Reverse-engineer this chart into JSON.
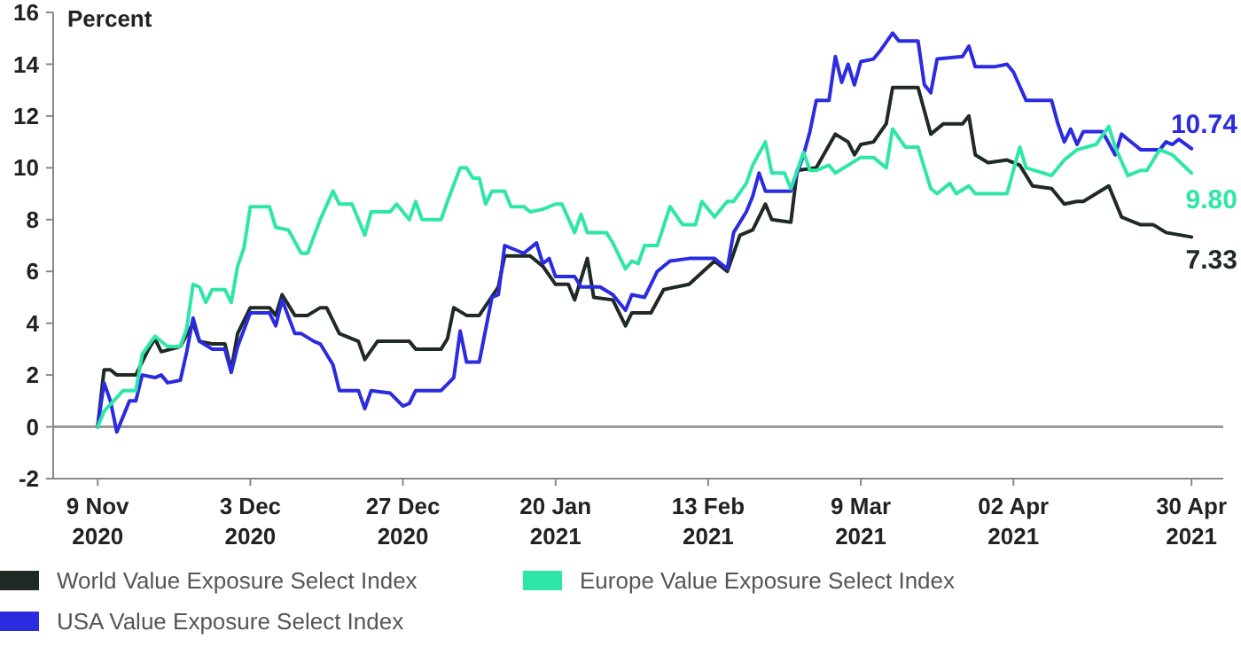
{
  "chart_data": {
    "type": "line",
    "ylabel": "Percent",
    "xlim": [
      "2020-11-02",
      "2021-05-05"
    ],
    "xticks": [
      {
        "value": "2020-11-09",
        "label": "9 Nov 2020"
      },
      {
        "value": "2020-12-03",
        "label": "3 Dec 2020"
      },
      {
        "value": "2020-12-27",
        "label": "27 Dec 2020"
      },
      {
        "value": "2021-01-20",
        "label": "20 Jan 2021"
      },
      {
        "value": "2021-02-13",
        "label": "13 Feb 2021"
      },
      {
        "value": "2021-03-09",
        "label": "9 Mar 2021"
      },
      {
        "value": "2021-04-02",
        "label": "02 Apr 2021"
      },
      {
        "value": "2021-04-30",
        "label": "30 Apr 2021"
      }
    ],
    "ylim": [
      -2,
      16
    ],
    "yticks": [
      -2,
      0,
      2,
      4,
      6,
      8,
      10,
      12,
      14,
      16
    ],
    "grid": false,
    "legend": "bottom",
    "line_style": "solid",
    "marker": "none",
    "ref_lines": [
      {
        "axis": "y",
        "value": 0,
        "color": "#9a9a9a"
      }
    ],
    "series": [
      {
        "name": "World Value Exposure Select Index",
        "color": "#1f2a24",
        "x": [
          "2020-11-09",
          "2020-11-10",
          "2020-11-11",
          "2020-11-12",
          "2020-11-15",
          "2020-11-17",
          "2020-11-18",
          "2020-11-19",
          "2020-11-22",
          "2020-11-24",
          "2020-11-25",
          "2020-11-27",
          "2020-11-29",
          "2020-11-30",
          "2020-12-01",
          "2020-12-03",
          "2020-12-06",
          "2020-12-07",
          "2020-12-08",
          "2020-12-10",
          "2020-12-12",
          "2020-12-14",
          "2020-12-15",
          "2020-12-17",
          "2020-12-20",
          "2020-12-21",
          "2020-12-23",
          "2020-12-26",
          "2020-12-28",
          "2020-12-29",
          "2021-01-02",
          "2021-01-03",
          "2021-01-04",
          "2021-01-06",
          "2021-01-08",
          "2021-01-11",
          "2021-01-12",
          "2021-01-16",
          "2021-01-18",
          "2021-01-20",
          "2021-01-22",
          "2021-01-23",
          "2021-01-25",
          "2021-01-26",
          "2021-01-29",
          "2021-01-31",
          "2021-02-01",
          "2021-02-04",
          "2021-02-06",
          "2021-02-10",
          "2021-02-14",
          "2021-02-16",
          "2021-02-18",
          "2021-02-20",
          "2021-02-22",
          "2021-02-23",
          "2021-02-26",
          "2021-02-27",
          "2021-03-02",
          "2021-03-05",
          "2021-03-07",
          "2021-03-08",
          "2021-03-09",
          "2021-03-11",
          "2021-03-13",
          "2021-03-14",
          "2021-03-18",
          "2021-03-20",
          "2021-03-22",
          "2021-03-25",
          "2021-03-26",
          "2021-03-27",
          "2021-03-29",
          "2021-04-01",
          "2021-04-03",
          "2021-04-05",
          "2021-04-08",
          "2021-04-10",
          "2021-04-12",
          "2021-04-13",
          "2021-04-17",
          "2021-04-19",
          "2021-04-22",
          "2021-04-24",
          "2021-04-26",
          "2021-04-30"
        ],
        "values": [
          0,
          2.2,
          2.2,
          2.0,
          2.0,
          3.0,
          3.4,
          2.9,
          3.1,
          4.0,
          3.3,
          3.2,
          3.2,
          2.2,
          3.6,
          4.6,
          4.6,
          4.3,
          5.1,
          4.3,
          4.3,
          4.6,
          4.6,
          3.6,
          3.3,
          2.6,
          3.3,
          3.3,
          3.3,
          3.0,
          3.0,
          3.4,
          4.6,
          4.3,
          4.3,
          5.4,
          6.6,
          6.6,
          6.2,
          5.5,
          5.5,
          4.9,
          6.5,
          5.0,
          4.9,
          3.9,
          4.4,
          4.4,
          5.3,
          5.5,
          6.4,
          6.0,
          7.4,
          7.6,
          8.6,
          8.0,
          7.9,
          9.9,
          10.0,
          11.3,
          11.0,
          10.5,
          10.9,
          11.0,
          11.7,
          13.1,
          13.1,
          11.3,
          11.7,
          11.7,
          12.0,
          10.5,
          10.2,
          10.3,
          10.1,
          9.3,
          9.2,
          8.6,
          8.7,
          8.7,
          9.3,
          8.1,
          7.8,
          7.8,
          7.5,
          7.33
        ],
        "value_labels": [
          null,
          null,
          null,
          null,
          null,
          null,
          null,
          null,
          null,
          null,
          null,
          null,
          null,
          null,
          null,
          null,
          null,
          null,
          null,
          null,
          null,
          null,
          null,
          null,
          null,
          null,
          null,
          null,
          null,
          null,
          null,
          null,
          null,
          null,
          null,
          null,
          null,
          null,
          null,
          null,
          null,
          null,
          null,
          null,
          null,
          null,
          null,
          null,
          null,
          null,
          null,
          null,
          null,
          null,
          null,
          null,
          null,
          null,
          null,
          null,
          null,
          null,
          null,
          null,
          null,
          null,
          null,
          null,
          null,
          null,
          null,
          null,
          null,
          null,
          null,
          null,
          null,
          null,
          null,
          null,
          null,
          null,
          null,
          null,
          null,
          "7.33"
        ]
      },
      {
        "name": "USA Value Exposure Select Index",
        "color": "#2b2be0",
        "x": [
          "2020-11-09",
          "2020-11-10",
          "2020-11-11",
          "2020-11-12",
          "2020-11-14",
          "2020-11-15",
          "2020-11-16",
          "2020-11-18",
          "2020-11-19",
          "2020-11-20",
          "2020-11-22",
          "2020-11-23",
          "2020-11-24",
          "2020-11-25",
          "2020-11-27",
          "2020-11-29",
          "2020-11-30",
          "2020-12-01",
          "2020-12-03",
          "2020-12-06",
          "2020-12-07",
          "2020-12-08",
          "2020-12-10",
          "2020-12-11",
          "2020-12-13",
          "2020-12-14",
          "2020-12-16",
          "2020-12-17",
          "2020-12-20",
          "2020-12-21",
          "2020-12-22",
          "2020-12-25",
          "2020-12-27",
          "2020-12-28",
          "2020-12-29",
          "2021-01-02",
          "2021-01-04",
          "2021-01-05",
          "2021-01-06",
          "2021-01-08",
          "2021-01-10",
          "2021-01-11",
          "2021-01-12",
          "2021-01-15",
          "2021-01-17",
          "2021-01-18",
          "2021-01-19",
          "2021-01-20",
          "2021-01-23",
          "2021-01-24",
          "2021-01-27",
          "2021-01-29",
          "2021-01-31",
          "2021-02-01",
          "2021-02-03",
          "2021-02-05",
          "2021-02-07",
          "2021-02-10",
          "2021-02-14",
          "2021-02-16",
          "2021-02-17",
          "2021-02-19",
          "2021-02-20",
          "2021-02-21",
          "2021-02-22",
          "2021-02-26",
          "2021-02-28",
          "2021-03-01",
          "2021-03-02",
          "2021-03-04",
          "2021-03-05",
          "2021-03-06",
          "2021-03-07",
          "2021-03-08",
          "2021-03-09",
          "2021-03-11",
          "2021-03-12",
          "2021-03-14",
          "2021-03-15",
          "2021-03-18",
          "2021-03-19",
          "2021-03-20",
          "2021-03-21",
          "2021-03-25",
          "2021-03-26",
          "2021-03-27",
          "2021-03-30",
          "2021-04-01",
          "2021-04-02",
          "2021-04-04",
          "2021-04-08",
          "2021-04-09",
          "2021-04-10",
          "2021-04-11",
          "2021-04-12",
          "2021-04-13",
          "2021-04-16",
          "2021-04-18",
          "2021-04-19",
          "2021-04-22",
          "2021-04-25",
          "2021-04-26",
          "2021-04-27",
          "2021-04-28",
          "2021-04-30"
        ],
        "values": [
          0,
          1.7,
          1.0,
          -0.2,
          1.0,
          1.0,
          2.0,
          1.9,
          2.0,
          1.7,
          1.8,
          2.9,
          4.2,
          3.3,
          3.0,
          3.0,
          2.1,
          3.1,
          4.4,
          4.4,
          3.9,
          4.9,
          3.6,
          3.6,
          3.3,
          3.2,
          2.4,
          1.4,
          1.4,
          0.7,
          1.4,
          1.3,
          0.8,
          0.9,
          1.4,
          1.4,
          1.9,
          3.7,
          2.5,
          2.5,
          5.0,
          5.1,
          7.0,
          6.7,
          7.1,
          6.3,
          6.5,
          5.8,
          5.8,
          5.4,
          5.4,
          5.1,
          4.5,
          5.1,
          5.0,
          6.0,
          6.4,
          6.5,
          6.5,
          6.1,
          7.5,
          8.3,
          8.9,
          9.8,
          9.1,
          9.1,
          10.5,
          11.4,
          12.6,
          12.6,
          14.3,
          13.3,
          14.0,
          13.2,
          14.1,
          14.2,
          14.5,
          15.2,
          14.9,
          14.9,
          13.2,
          12.9,
          14.2,
          14.3,
          14.7,
          13.9,
          13.9,
          14.0,
          13.7,
          12.6,
          12.6,
          11.7,
          11.0,
          11.5,
          10.9,
          11.4,
          11.4,
          10.5,
          11.3,
          10.7,
          10.7,
          11.0,
          10.9,
          11.1,
          10.74
        ],
        "value_labels": [
          null,
          null,
          null,
          null,
          null,
          null,
          null,
          null,
          null,
          null,
          null,
          null,
          null,
          null,
          null,
          null,
          null,
          null,
          null,
          null,
          null,
          null,
          null,
          null,
          null,
          null,
          null,
          null,
          null,
          null,
          null,
          null,
          null,
          null,
          null,
          null,
          null,
          null,
          null,
          null,
          null,
          null,
          null,
          null,
          null,
          null,
          null,
          null,
          null,
          null,
          null,
          null,
          null,
          null,
          null,
          null,
          null,
          null,
          null,
          null,
          null,
          null,
          null,
          null,
          null,
          null,
          null,
          null,
          null,
          null,
          null,
          null,
          null,
          null,
          null,
          null,
          null,
          null,
          null,
          null,
          null,
          null,
          null,
          null,
          null,
          null,
          null,
          null,
          null,
          null,
          null,
          null,
          null,
          null,
          null,
          null,
          null,
          null,
          null,
          null,
          null,
          null,
          null,
          null,
          "10.74"
        ]
      },
      {
        "name": "Europe Value Exposure Select Index",
        "color": "#2ee6a8",
        "x": [
          "2020-11-09",
          "2020-11-10",
          "2020-11-13",
          "2020-11-15",
          "2020-11-16",
          "2020-11-18",
          "2020-11-20",
          "2020-11-22",
          "2020-11-23",
          "2020-11-24",
          "2020-11-25",
          "2020-11-26",
          "2020-11-27",
          "2020-11-29",
          "2020-11-30",
          "2020-12-01",
          "2020-12-02",
          "2020-12-03",
          "2020-12-06",
          "2020-12-07",
          "2020-12-09",
          "2020-12-11",
          "2020-12-12",
          "2020-12-14",
          "2020-12-16",
          "2020-12-17",
          "2020-12-19",
          "2020-12-21",
          "2020-12-22",
          "2020-12-25",
          "2020-12-26",
          "2020-12-28",
          "2020-12-29",
          "2020-12-30",
          "2021-01-02",
          "2021-01-03",
          "2021-01-05",
          "2021-01-06",
          "2021-01-07",
          "2021-01-08",
          "2021-01-09",
          "2021-01-10",
          "2021-01-12",
          "2021-01-13",
          "2021-01-15",
          "2021-01-16",
          "2021-01-18",
          "2021-01-20",
          "2021-01-21",
          "2021-01-23",
          "2021-01-24",
          "2021-01-25",
          "2021-01-28",
          "2021-01-29",
          "2021-01-31",
          "2021-02-01",
          "2021-02-02",
          "2021-02-03",
          "2021-02-05",
          "2021-02-07",
          "2021-02-09",
          "2021-02-11",
          "2021-02-12",
          "2021-02-14",
          "2021-02-16",
          "2021-02-17",
          "2021-02-19",
          "2021-02-20",
          "2021-02-22",
          "2021-02-23",
          "2021-02-25",
          "2021-02-26",
          "2021-02-28",
          "2021-03-01",
          "2021-03-02",
          "2021-03-04",
          "2021-03-05",
          "2021-03-07",
          "2021-03-09",
          "2021-03-11",
          "2021-03-13",
          "2021-03-14",
          "2021-03-16",
          "2021-03-18",
          "2021-03-20",
          "2021-03-21",
          "2021-03-23",
          "2021-03-24",
          "2021-03-26",
          "2021-03-27",
          "2021-04-01",
          "2021-04-03",
          "2021-04-04",
          "2021-04-08",
          "2021-04-10",
          "2021-04-12",
          "2021-04-15",
          "2021-04-17",
          "2021-04-18",
          "2021-04-20",
          "2021-04-22",
          "2021-04-23",
          "2021-04-25",
          "2021-04-27",
          "2021-04-30"
        ],
        "values": [
          0,
          0.6,
          1.4,
          1.4,
          2.8,
          3.5,
          3.1,
          3.1,
          3.8,
          5.5,
          5.4,
          4.8,
          5.3,
          5.3,
          4.8,
          6.2,
          6.9,
          8.5,
          8.5,
          7.7,
          7.6,
          6.7,
          6.7,
          8.0,
          9.1,
          8.6,
          8.6,
          7.4,
          8.3,
          8.3,
          8.6,
          8.0,
          8.7,
          8.0,
          8.0,
          8.7,
          10.0,
          10.0,
          9.6,
          9.6,
          8.6,
          9.1,
          9.1,
          8.5,
          8.5,
          8.3,
          8.4,
          8.6,
          8.6,
          7.5,
          8.2,
          7.5,
          7.5,
          7.1,
          6.1,
          6.4,
          6.3,
          7.0,
          7.0,
          8.5,
          7.8,
          7.8,
          8.7,
          8.1,
          8.7,
          8.7,
          9.4,
          10.1,
          11.0,
          9.8,
          9.8,
          9.2,
          10.6,
          9.9,
          9.9,
          10.1,
          9.8,
          10.1,
          10.4,
          10.4,
          10.0,
          11.5,
          10.8,
          10.8,
          9.2,
          9.0,
          9.4,
          9.0,
          9.3,
          9.0,
          9.0,
          10.8,
          10.0,
          9.7,
          10.3,
          10.7,
          10.9,
          11.6,
          10.8,
          9.7,
          9.9,
          9.9,
          10.7,
          10.5,
          9.8
        ],
        "value_labels": [
          null,
          null,
          null,
          null,
          null,
          null,
          null,
          null,
          null,
          null,
          null,
          null,
          null,
          null,
          null,
          null,
          null,
          null,
          null,
          null,
          null,
          null,
          null,
          null,
          null,
          null,
          null,
          null,
          null,
          null,
          null,
          null,
          null,
          null,
          null,
          null,
          null,
          null,
          null,
          null,
          null,
          null,
          null,
          null,
          null,
          null,
          null,
          null,
          null,
          null,
          null,
          null,
          null,
          null,
          null,
          null,
          null,
          null,
          null,
          null,
          null,
          null,
          null,
          null,
          null,
          null,
          null,
          null,
          null,
          null,
          null,
          null,
          null,
          null,
          null,
          null,
          null,
          null,
          null,
          null,
          null,
          null,
          null,
          null,
          null,
          null,
          null,
          null,
          null,
          null,
          null,
          null,
          null,
          null,
          null,
          null,
          null,
          null,
          null,
          null,
          null,
          null,
          null,
          null,
          "9.80"
        ]
      }
    ]
  }
}
